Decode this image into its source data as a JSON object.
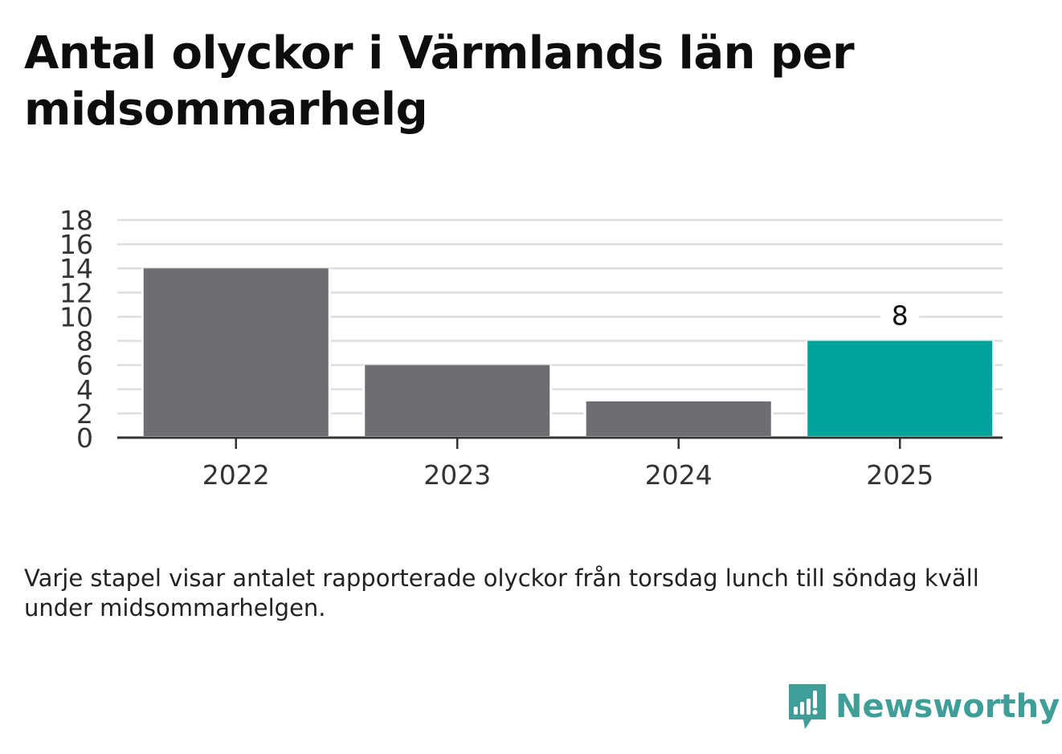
{
  "chart_data": {
    "type": "bar",
    "title": "Antal olyckor i Värmlands län per midsommarhelg",
    "categories": [
      "2022",
      "2023",
      "2024",
      "2025"
    ],
    "values": [
      14,
      6,
      3,
      8
    ],
    "data_labels": {
      "2025": "8"
    },
    "ylim": [
      0,
      18
    ],
    "yticks": [
      "0",
      "2",
      "4",
      "6",
      "8",
      "10",
      "12",
      "14",
      "16",
      "18"
    ],
    "xlabel": "",
    "ylabel": "",
    "grid": true,
    "colors": {
      "default": "#6e6d72",
      "highlight": "#00a39a"
    },
    "highlight_category": "2025"
  },
  "footnote": "Varje stapel visar antalet rapporterade olyckor från torsdag lunch till söndag kväll under midsommarhelgen.",
  "brand": {
    "name": "Newsworthy",
    "color": "#3f9e97",
    "icon": "newsworthy-logo-icon"
  }
}
